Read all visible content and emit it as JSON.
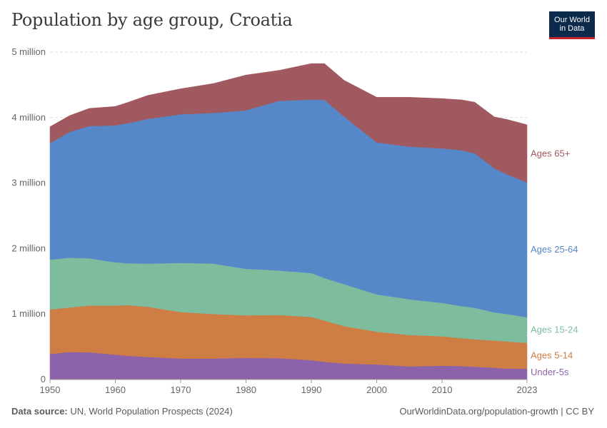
{
  "header": {
    "title": "Population by age group, Croatia",
    "logo_line1": "Our World",
    "logo_line2": "in Data"
  },
  "footer": {
    "source_label": "Data source:",
    "source_text": "UN, World Population Prospects (2024)",
    "url_text": "OurWorldinData.org/population-growth | CC BY"
  },
  "chart_data": {
    "type": "area",
    "stacked": true,
    "title": "Population by age group, Croatia",
    "xlim": [
      1950,
      2023
    ],
    "ylim": [
      0,
      5000000
    ],
    "x_ticks": [
      1950,
      1960,
      1970,
      1980,
      1990,
      2000,
      2010,
      2023
    ],
    "y_ticks": [
      {
        "value": 0,
        "label": "0"
      },
      {
        "value": 1000000,
        "label": "1 million"
      },
      {
        "value": 2000000,
        "label": "2 million"
      },
      {
        "value": 3000000,
        "label": "3 million"
      },
      {
        "value": 4000000,
        "label": "4 million"
      },
      {
        "value": 5000000,
        "label": "5 million"
      }
    ],
    "x": [
      1950,
      1953,
      1956,
      1960,
      1962,
      1965,
      1970,
      1975,
      1980,
      1985,
      1990,
      1992,
      1995,
      2000,
      2005,
      2010,
      2013,
      2015,
      2018,
      2020,
      2023
    ],
    "series": [
      {
        "name": "Under-5s",
        "color": "#8c62aa",
        "values": [
          390000,
          420000,
          415000,
          380000,
          360000,
          345000,
          320000,
          320000,
          330000,
          325000,
          295000,
          270000,
          245000,
          230000,
          200000,
          210000,
          205000,
          195000,
          180000,
          165000,
          165000
        ]
      },
      {
        "name": "Ages 5-14",
        "color": "#ce7d45",
        "values": [
          680000,
          680000,
          715000,
          750000,
          775000,
          765000,
          710000,
          680000,
          650000,
          660000,
          660000,
          630000,
          570000,
          500000,
          480000,
          450000,
          425000,
          420000,
          415000,
          415000,
          395000
        ]
      },
      {
        "name": "Ages 15-24",
        "color": "#7dbd9e",
        "values": [
          760000,
          760000,
          720000,
          660000,
          640000,
          660000,
          750000,
          770000,
          710000,
          680000,
          670000,
          650000,
          640000,
          570000,
          545000,
          510000,
          490000,
          480000,
          430000,
          420000,
          390000
        ]
      },
      {
        "name": "Ages 25-64",
        "color": "#5687c9",
        "values": [
          1780000,
          1920000,
          2020000,
          2090000,
          2140000,
          2210000,
          2270000,
          2300000,
          2420000,
          2590000,
          2650000,
          2720000,
          2560000,
          2320000,
          2330000,
          2360000,
          2380000,
          2360000,
          2200000,
          2130000,
          2060000
        ]
      },
      {
        "name": "Ages 65+",
        "color": "#a05a5f",
        "values": [
          250000,
          250000,
          270000,
          290000,
          320000,
          360000,
          390000,
          450000,
          540000,
          465000,
          550000,
          555000,
          555000,
          690000,
          755000,
          760000,
          770000,
          780000,
          785000,
          840000,
          880000
        ]
      }
    ]
  }
}
